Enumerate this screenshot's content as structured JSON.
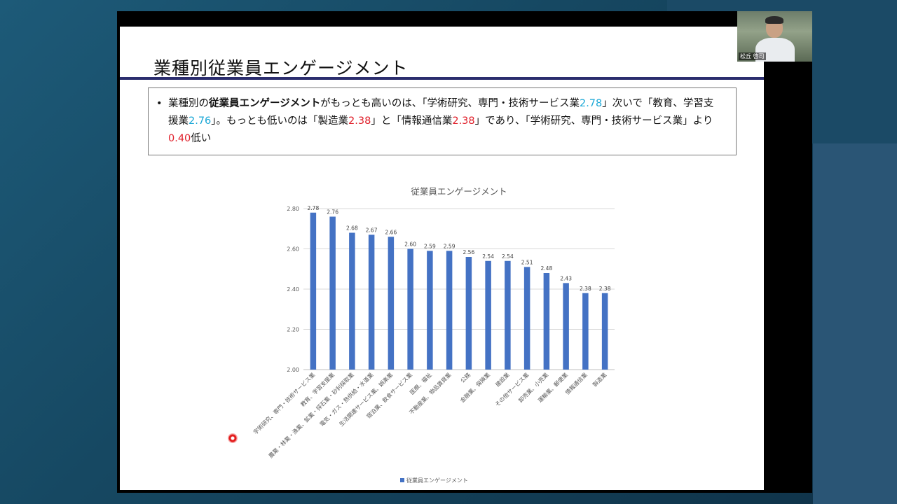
{
  "slide": {
    "title": "業種別従業員エンゲージメント",
    "summary": {
      "bullet": "•",
      "p1": "業種別の",
      "p2_bold": "従業員エンゲージメント",
      "p3": "がもっとも高いのは、「学術研究、専門・技術サービス業",
      "v1": "2.78",
      "p4": "」次いで「教育、学習支援業",
      "v2": "2.76",
      "p5": "」。もっとも低いのは「製造業",
      "v3": "2.38",
      "p6": "」と「情報通信業",
      "v4": "2.38",
      "p7": "」であり、「学術研究、専門・技術サービス業」より",
      "v5": "0.40",
      "p8": "低い"
    }
  },
  "webcam": {
    "name": "松丘 啓司"
  },
  "colors": {
    "bar": "#4472c4",
    "title_rule": "#2b2d6e",
    "highlight_blue": "#1aa7d6",
    "highlight_red": "#e0202b"
  },
  "chart_data": {
    "type": "bar",
    "title": "従業員エンゲージメント",
    "categories": [
      "学術研究、専門・技術サービス業",
      "教育、学習支援業",
      "農業・林業・漁業、鉱業・採石業・砂利採取業",
      "電気・ガス・熱供給・水道業",
      "生活関連サービス業、娯楽業",
      "宿泊業、飲食サービス業",
      "医療、福祉",
      "不動産業、物品賃貸業",
      "公務",
      "金融業、保険業",
      "建設業",
      "その他サービス業",
      "卸売業、小売業",
      "運輸業、郵便業",
      "情報通信業",
      "製造業"
    ],
    "series": [
      {
        "name": "従業員エンゲージメント",
        "values": [
          2.78,
          2.76,
          2.68,
          2.67,
          2.66,
          2.6,
          2.59,
          2.59,
          2.56,
          2.54,
          2.54,
          2.51,
          2.48,
          2.43,
          2.38,
          2.38
        ]
      }
    ],
    "data_labels": [
      "2.78",
      "2.76",
      "2.68",
      "2.67",
      "2.66",
      "2.60",
      "2.59",
      "2.59",
      "2.56",
      "2.54",
      "2.54",
      "2.51",
      "2.48",
      "2.43",
      "2.38",
      "2.38"
    ],
    "ylim": [
      2.0,
      2.8
    ],
    "y_ticks": [
      "2.00",
      "2.20",
      "2.40",
      "2.60",
      "2.80"
    ],
    "y_tick_values": [
      2.0,
      2.2,
      2.4,
      2.6,
      2.8
    ],
    "grid": true,
    "legend": "bottom"
  }
}
